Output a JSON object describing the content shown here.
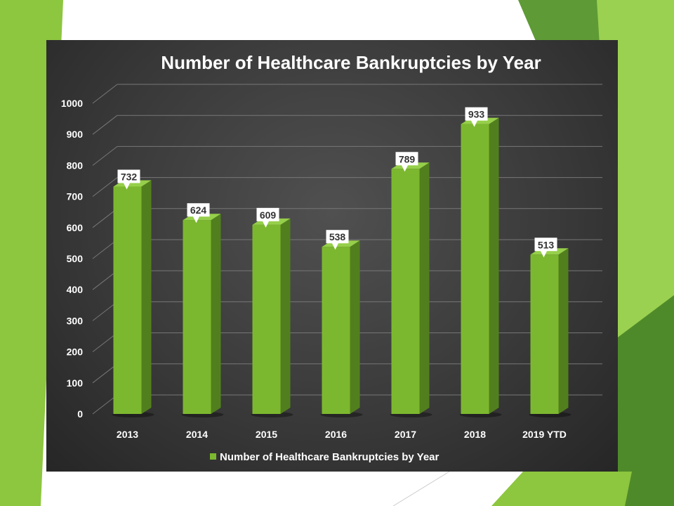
{
  "colors": {
    "slide_accent": "#8dc63f",
    "bar_front": "#7cb82f",
    "bar_side": "#527f1d",
    "bar_top": "#96cf4a",
    "panel_bg": "#3a3a3a",
    "text": "#ffffff",
    "gridline": "#777777"
  },
  "chart_data": {
    "type": "bar",
    "title": "Number of Healthcare Bankruptcies by Year",
    "categories": [
      "2013",
      "2014",
      "2015",
      "2016",
      "2017",
      "2018",
      "2019 YTD"
    ],
    "series": [
      {
        "name": "Number of Healthcare Bankruptcies by Year",
        "values": [
          732,
          624,
          609,
          538,
          789,
          933,
          513
        ],
        "data_labels": [
          "732",
          "624",
          "609",
          "538",
          "789",
          "933",
          "513"
        ]
      }
    ],
    "y_ticks": [
      "0",
      "100",
      "200",
      "300",
      "400",
      "500",
      "600",
      "700",
      "800",
      "900",
      "1000"
    ],
    "ylim": [
      0,
      1000
    ],
    "grid": true,
    "legend_position": "bottom",
    "style": "3d-column"
  }
}
